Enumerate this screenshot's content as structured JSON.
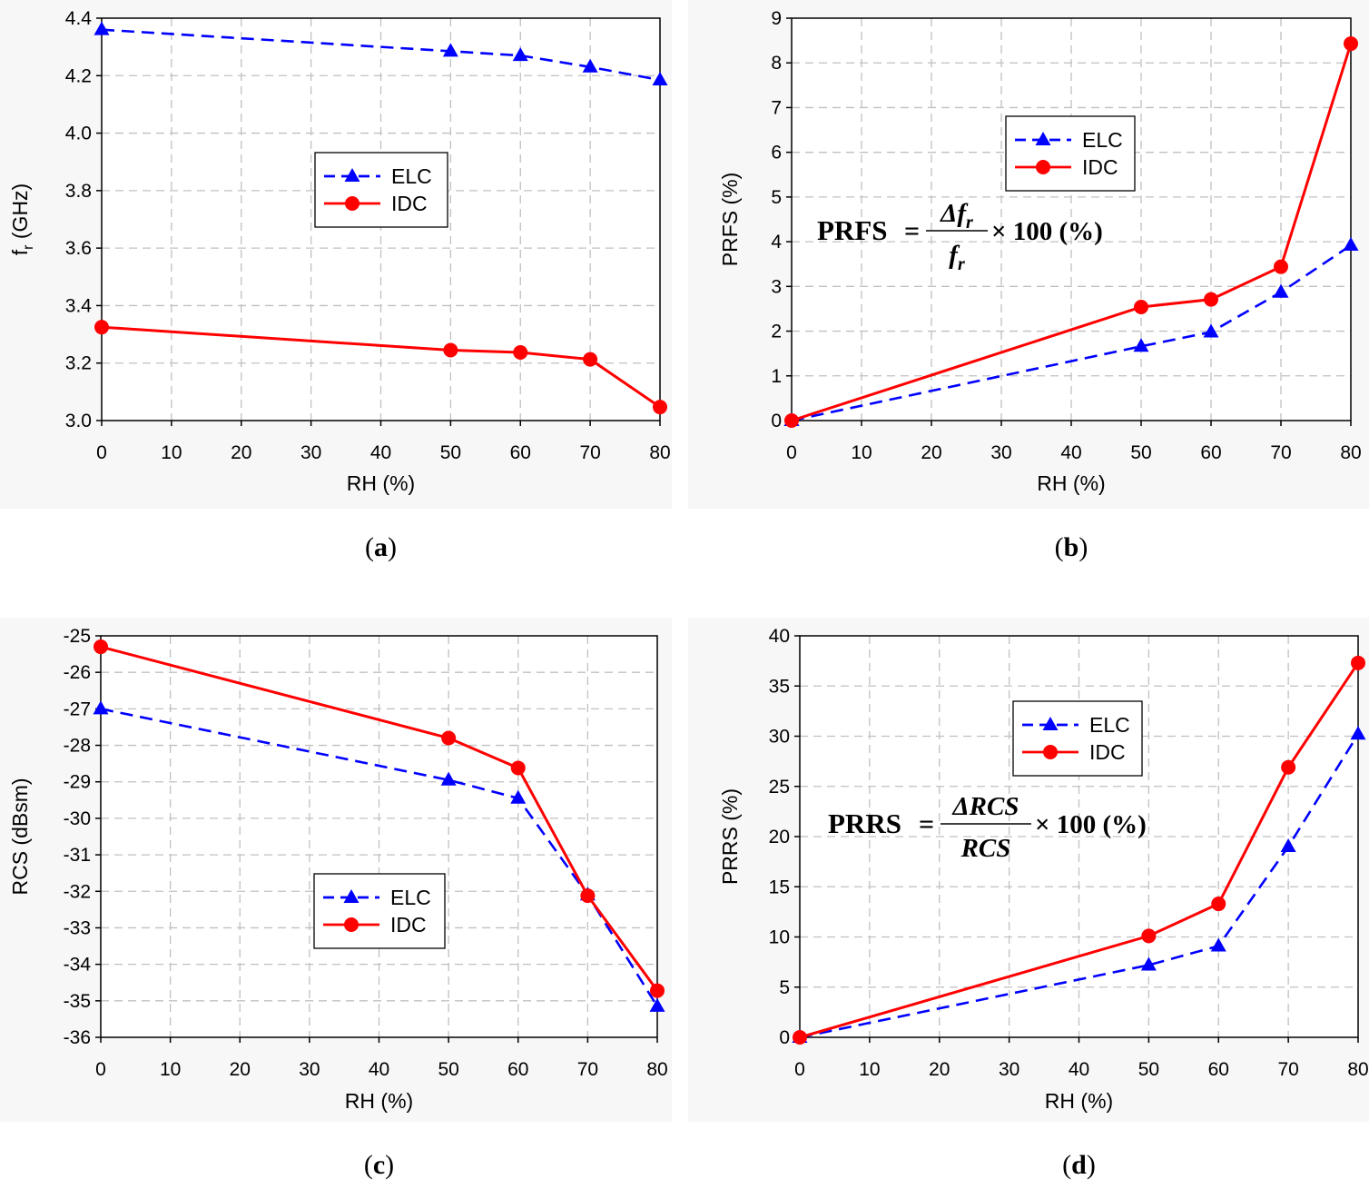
{
  "colors": {
    "elc": "#0000ff",
    "idc": "#ff0000",
    "grid": "#c0c0c0",
    "axis": "#000000",
    "panel_bg": "#f7f7f7"
  },
  "chart_data": [
    {
      "type": "line",
      "panel": "a",
      "caption": {
        "open": "(",
        "letter": "a",
        "close": ")"
      },
      "xlabel": "RH (%)",
      "ylabel": {
        "main": "f",
        "sub": "r",
        "rest": " (GHz)"
      },
      "x_ticks": [
        0,
        10,
        20,
        30,
        40,
        50,
        60,
        70,
        80
      ],
      "y_ticks": [
        "3.0",
        "3.2",
        "3.4",
        "3.6",
        "3.8",
        "4.0",
        "4.2",
        "4.4"
      ],
      "xlim": [
        0,
        80
      ],
      "ylim": [
        3.0,
        4.4
      ],
      "grid": true,
      "legend_position": "center",
      "x": [
        0,
        50,
        60,
        70,
        80
      ],
      "series": [
        {
          "name": "ELC",
          "style": "dashed",
          "marker": "triangle",
          "values": [
            4.36,
            4.285,
            4.27,
            4.23,
            4.185
          ]
        },
        {
          "name": "IDC",
          "style": "solid",
          "marker": "circle",
          "values": [
            3.325,
            3.245,
            3.237,
            3.213,
            3.047
          ]
        }
      ]
    },
    {
      "type": "line",
      "panel": "b",
      "caption": {
        "open": "(",
        "letter": "b",
        "close": ")"
      },
      "xlabel": "RH (%)",
      "ylabel": "PRFS (%)",
      "x_ticks": [
        0,
        10,
        20,
        30,
        40,
        50,
        60,
        70,
        80
      ],
      "y_ticks": [
        "0",
        "1",
        "2",
        "3",
        "4",
        "5",
        "6",
        "7",
        "8",
        "9"
      ],
      "xlim": [
        0,
        80
      ],
      "ylim": [
        0,
        9
      ],
      "grid": true,
      "legend_position": "upper-center",
      "formula": {
        "lhs": "PRFS",
        "eq": "=",
        "num_delta": "Δ",
        "num": "f",
        "sub": "r",
        "den": "f",
        "rhs": "× 100 (%)"
      },
      "x": [
        0,
        50,
        60,
        70,
        80
      ],
      "series": [
        {
          "name": "ELC",
          "style": "dashed",
          "marker": "triangle",
          "values": [
            0,
            1.66,
            1.98,
            2.87,
            3.92
          ]
        },
        {
          "name": "IDC",
          "style": "solid",
          "marker": "circle",
          "values": [
            0,
            2.54,
            2.71,
            3.44,
            8.43
          ]
        }
      ]
    },
    {
      "type": "line",
      "panel": "c",
      "caption": {
        "open": "(",
        "letter": "c",
        "close": ")"
      },
      "xlabel": "RH (%)",
      "ylabel": "RCS (dBsm)",
      "x_ticks": [
        0,
        10,
        20,
        30,
        40,
        50,
        60,
        70,
        80
      ],
      "y_ticks": [
        "-36",
        "-35",
        "-34",
        "-33",
        "-32",
        "-31",
        "-30",
        "-29",
        "-28",
        "-27",
        "-26",
        "-25"
      ],
      "xlim": [
        0,
        80
      ],
      "ylim": [
        -36,
        -25
      ],
      "grid": true,
      "legend_position": "lower-center",
      "x": [
        0,
        50,
        60,
        70,
        80
      ],
      "series": [
        {
          "name": "ELC",
          "style": "dashed",
          "marker": "triangle",
          "values": [
            -27.0,
            -28.95,
            -29.45,
            -32.1,
            -35.15
          ]
        },
        {
          "name": "IDC",
          "style": "solid",
          "marker": "circle",
          "values": [
            -25.3,
            -27.8,
            -28.62,
            -32.12,
            -34.72
          ]
        }
      ]
    },
    {
      "type": "line",
      "panel": "d",
      "caption": {
        "open": "(",
        "letter": "d",
        "close": ")"
      },
      "xlabel": "RH (%)",
      "ylabel": "PRRS (%)",
      "x_ticks": [
        0,
        10,
        20,
        30,
        40,
        50,
        60,
        70,
        80
      ],
      "y_ticks": [
        "0",
        "5",
        "10",
        "15",
        "20",
        "25",
        "30",
        "35",
        "40"
      ],
      "xlim": [
        0,
        80
      ],
      "ylim": [
        0,
        40
      ],
      "grid": true,
      "legend_position": "upper-center",
      "formula": {
        "lhs": "PRRS",
        "eq": "=",
        "num_delta": "Δ",
        "num": "RCS",
        "den": "RCS",
        "rhs": "× 100 (%)"
      },
      "x": [
        0,
        50,
        60,
        70,
        80
      ],
      "series": [
        {
          "name": "ELC",
          "style": "dashed",
          "marker": "triangle",
          "values": [
            0,
            7.2,
            9.1,
            19.0,
            30.2
          ]
        },
        {
          "name": "IDC",
          "style": "solid",
          "marker": "circle",
          "values": [
            0,
            10.1,
            13.3,
            26.9,
            37.3
          ]
        }
      ]
    }
  ]
}
